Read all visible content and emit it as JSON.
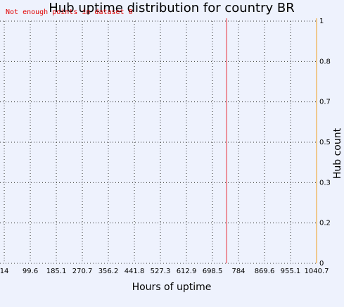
{
  "chart_data": {
    "type": "vline",
    "title": "Hub uptime distribution for country BR",
    "annotation": "Not enough points in dataset 0",
    "x_label": "Hours of uptime",
    "y_label": "Hub count",
    "xlim": [
      0,
      1040.7
    ],
    "xticks": [
      14,
      99.6,
      185.1,
      270.7,
      356.2,
      441.8,
      527.3,
      612.9,
      698.5,
      784,
      869.6,
      955.1,
      1040.7
    ],
    "ylim": [
      0,
      1
    ],
    "yticks": [
      0,
      {
        "value": 0.1667,
        "label": "0.2"
      },
      {
        "value": 0.3333,
        "label": "0.3"
      },
      {
        "value": 0.5,
        "label": "0.5"
      },
      {
        "value": 0.6667,
        "label": "0.7"
      },
      {
        "value": 0.8333,
        "label": "0.8"
      },
      1
    ],
    "x": [
      745
    ],
    "color": "#e8303a",
    "axis_color": "#f0a020",
    "grid": true
  }
}
